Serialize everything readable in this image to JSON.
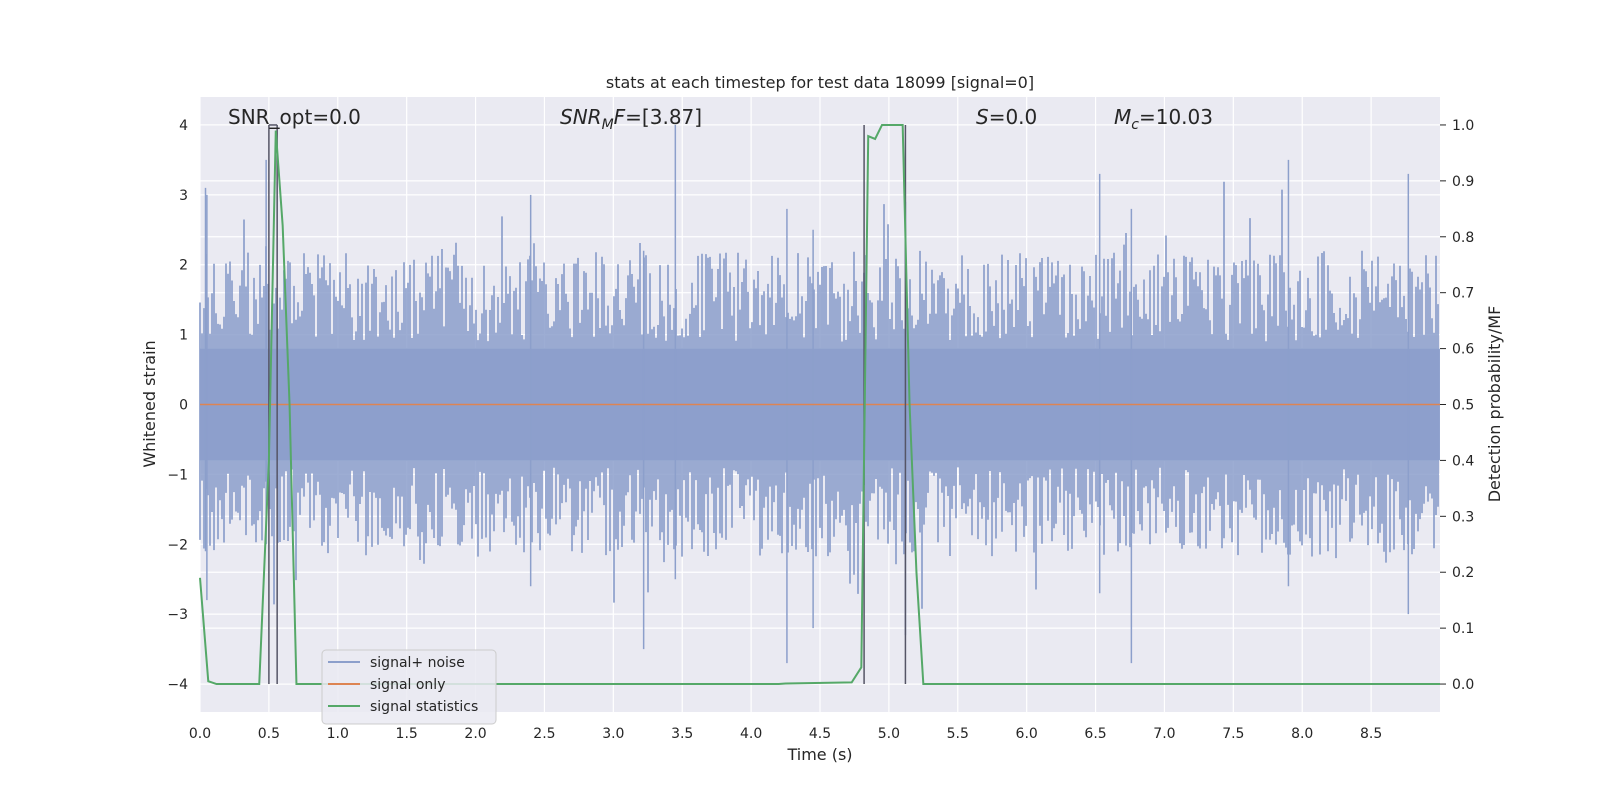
{
  "chart_data": {
    "type": "line",
    "title": "stats at each timestep for test data 18099 [signal=0]",
    "xlabel": "Time (s)",
    "ylabel": "Whitened strain",
    "ylabel_right": "Detection probability/MF",
    "xlim": [
      0.0,
      9.0
    ],
    "ylim": [
      -4.4,
      4.4
    ],
    "ylim_right": [
      -0.05,
      1.05
    ],
    "x_ticks": [
      "0.0",
      "0.5",
      "1.0",
      "1.5",
      "2.0",
      "2.5",
      "3.0",
      "3.5",
      "4.0",
      "4.5",
      "5.0",
      "5.5",
      "6.0",
      "6.5",
      "7.0",
      "7.5",
      "8.0",
      "8.5"
    ],
    "y_ticks": [
      "4",
      "3",
      "2",
      "1",
      "0",
      "−1",
      "−2",
      "−3",
      "−4"
    ],
    "y_ticks_right": [
      "1.0",
      "0.9",
      "0.8",
      "0.7",
      "0.6",
      "0.5",
      "0.4",
      "0.3",
      "0.2",
      "0.1",
      "0.0"
    ],
    "grid": true,
    "legend_position": "lower-left",
    "annotations": {
      "snr_opt": "SNR_opt=0.0",
      "snr_mf_main": "SNR",
      "snr_mf_sub": "M",
      "snr_mf_ital2": "F",
      "snr_mf_value": "=[3.87]",
      "s_main": "S",
      "s_value": "=0.0",
      "mc_main": "M",
      "mc_sub": "c",
      "mc_value": "=10.03"
    },
    "series": [
      {
        "name": "signal+ noise",
        "color": "#8c9fcb",
        "axis": "left",
        "description_values": "noise envelope, amplitude mostly within [-2.5, 3.0], peaks up to ~4.0 near t=3.45 and -3.7 near t=4.3"
      },
      {
        "name": "signal only",
        "color": "#dd8452",
        "axis": "left",
        "x": [
          0.0,
          9.0
        ],
        "y": [
          0.0,
          0.0
        ]
      },
      {
        "name": "signal statistics",
        "color": "#55a868",
        "axis": "right",
        "x": [
          0.0,
          0.06,
          0.12,
          0.43,
          0.5,
          0.55,
          0.6,
          0.65,
          0.7,
          4.2,
          4.25,
          4.73,
          4.8,
          4.85,
          4.9,
          4.95,
          5.0,
          5.1,
          5.15,
          5.2,
          5.25,
          9.0
        ],
        "y": [
          0.19,
          0.005,
          0.0,
          0.0,
          0.4,
          0.99,
          0.82,
          0.5,
          0.0,
          0.0,
          0.001,
          0.003,
          0.03,
          0.98,
          0.975,
          1.0,
          1.0,
          1.0,
          0.5,
          0.2,
          0.0,
          0.0
        ]
      }
    ],
    "vertical_markers_x": [
      0.5,
      0.56,
      4.82,
      5.12
    ]
  }
}
